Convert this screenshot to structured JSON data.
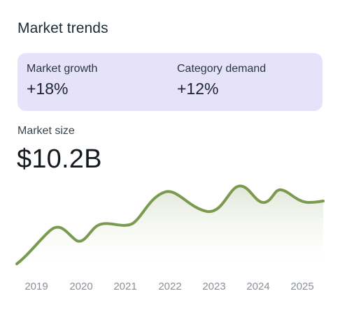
{
  "card": {
    "title": "Market trends"
  },
  "metrics": [
    {
      "label": "Market growth",
      "value": "+18%"
    },
    {
      "label": "Category demand",
      "value": "+12%"
    }
  ],
  "market_size": {
    "label": "Market size",
    "value": "$10.2B"
  },
  "colors": {
    "accent_line": "#7a9a4f",
    "metrics_background": "#e6e2f9"
  },
  "chart_data": {
    "type": "area",
    "x_labels": [
      "2019",
      "2020",
      "2021",
      "2022",
      "2023",
      "2024",
      "2025"
    ],
    "title": "",
    "xlabel": "",
    "ylabel": "",
    "grid": false,
    "legend": "none"
  }
}
